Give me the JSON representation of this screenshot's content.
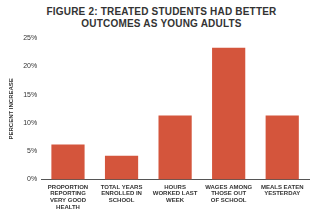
{
  "chart_data": {
    "type": "bar",
    "title": "FIGURE 2: TREATED STUDENTS HAD BETTER OUTCOMES AS YOUNG ADULTS",
    "y_label": "PERCENT INCREASE",
    "categories": [
      "PROPORTION REPORTING VERY GOOD HEALTH",
      "TOTAL YEARS ENROLLED IN SCHOOL",
      "HOURS WORKED LAST WEEK",
      "WAGES AMONG THOSE OUT OF SCHOOL",
      "MEALS EATEN YESTERDAY"
    ],
    "values": [
      6.2,
      4.2,
      11.3,
      23.3,
      11.3
    ],
    "color": "#d4553c",
    "ylim": [
      0,
      25
    ],
    "yticks": [
      {
        "value": 0,
        "label": "0%"
      },
      {
        "value": 5,
        "label": "5%"
      },
      {
        "value": 10,
        "label": "10%"
      },
      {
        "value": 15,
        "label": "15%"
      },
      {
        "value": 20,
        "label": "20%"
      },
      {
        "value": 25,
        "label": "25%"
      }
    ],
    "grid": false
  }
}
